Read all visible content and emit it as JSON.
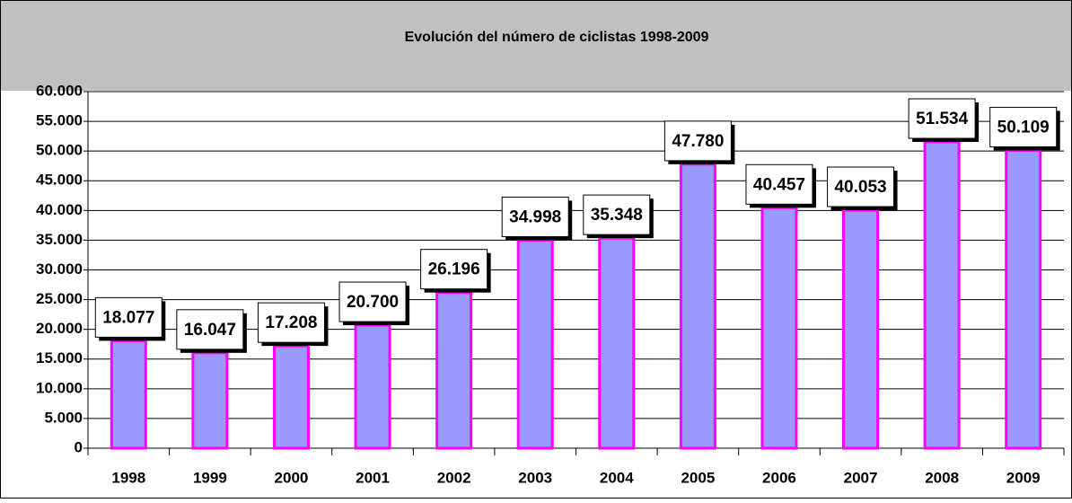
{
  "chart_data": {
    "type": "bar",
    "title": "Evolución del número de ciclistas 1998-2009",
    "categories": [
      "1998",
      "1999",
      "2000",
      "2001",
      "2002",
      "2003",
      "2004",
      "2005",
      "2006",
      "2007",
      "2008",
      "2009"
    ],
    "values": [
      18077,
      16047,
      17208,
      20700,
      26196,
      34998,
      35348,
      47780,
      40457,
      40053,
      51534,
      50109
    ],
    "value_labels": [
      "18.077",
      "16.047",
      "17.208",
      "20.700",
      "26.196",
      "34.998",
      "35.348",
      "47.780",
      "40.457",
      "40.053",
      "51.534",
      "50.109"
    ],
    "color": "#9999ff",
    "edge_color": "#ff00ff",
    "ylim": [
      0,
      60000
    ],
    "yticks": [
      0,
      {
        "value": 5000,
        "label": "5.000"
      },
      {
        "value": 10000,
        "label": "10.000"
      },
      {
        "value": 15000,
        "label": "15.000"
      },
      {
        "value": 20000,
        "label": "20.000"
      },
      {
        "value": 25000,
        "label": "25.000"
      },
      {
        "value": 30000,
        "label": "30.000"
      },
      {
        "value": 35000,
        "label": "35.000"
      },
      {
        "value": 40000,
        "label": "40.000"
      },
      {
        "value": 45000,
        "label": "45.000"
      },
      {
        "value": 50000,
        "label": "50.000"
      },
      {
        "value": 55000,
        "label": "55.000"
      },
      {
        "value": 60000,
        "label": "60.000"
      }
    ],
    "grid": true
  }
}
